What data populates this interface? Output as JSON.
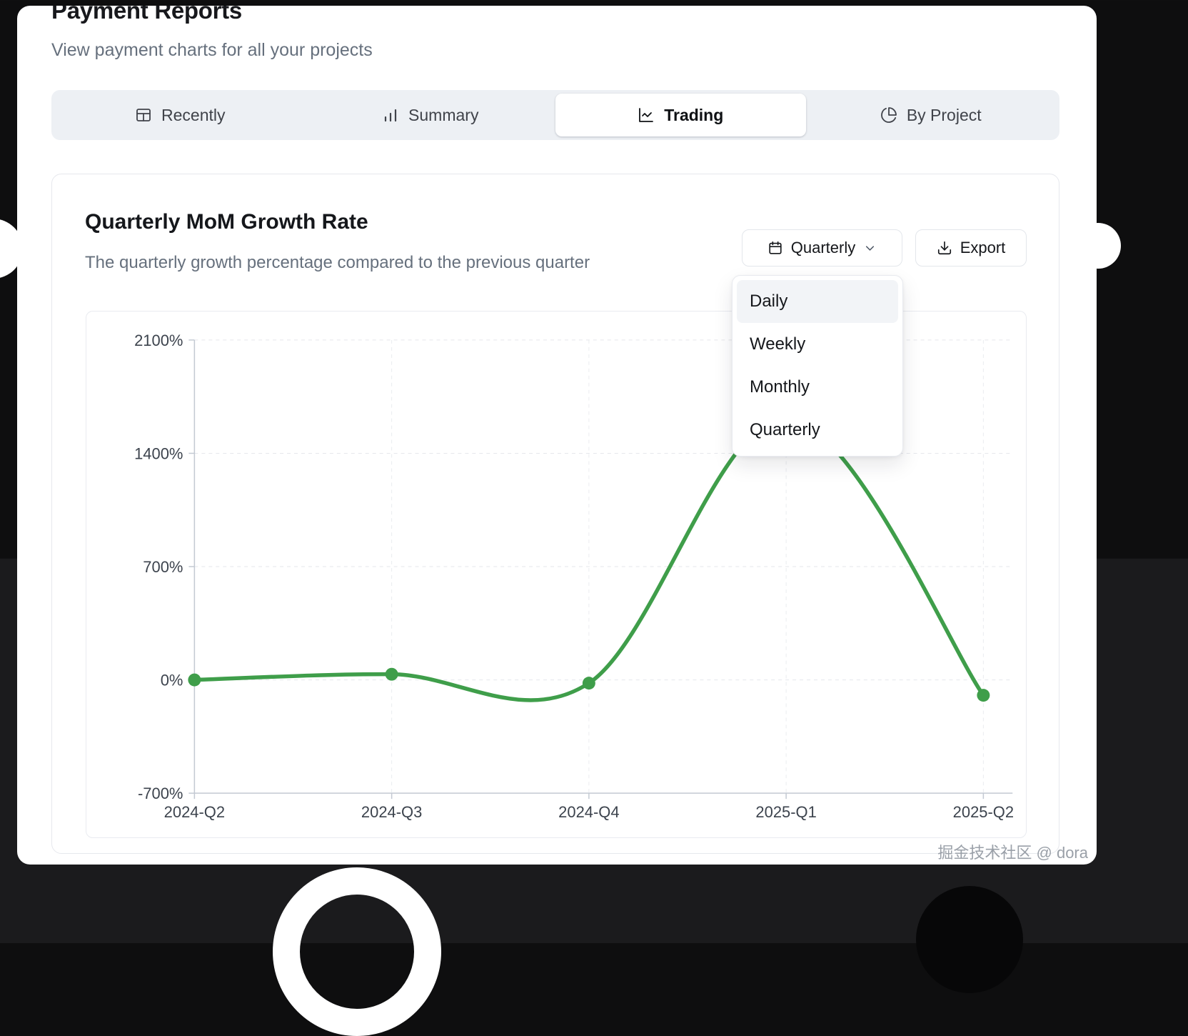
{
  "page": {
    "title": "Payment Reports",
    "subtitle": "View payment charts for all your projects"
  },
  "tabs": [
    {
      "label": "Recently",
      "icon": "table-icon",
      "active": false
    },
    {
      "label": "Summary",
      "icon": "bar-chart-icon",
      "active": false
    },
    {
      "label": "Trading",
      "icon": "line-chart-icon",
      "active": true
    },
    {
      "label": "By Project",
      "icon": "pie-chart-icon",
      "active": false
    }
  ],
  "card": {
    "title": "Quarterly MoM Growth Rate",
    "subtitle": "The quarterly growth percentage compared to the previous quarter",
    "period_button": "Quarterly",
    "period_button_icon": "calendar-icon",
    "period_button_chevron": "chevron-down-icon",
    "export_button": "Export",
    "export_button_icon": "download-icon"
  },
  "dropdown": {
    "items": [
      {
        "label": "Daily",
        "highlighted": true
      },
      {
        "label": "Weekly",
        "highlighted": false
      },
      {
        "label": "Monthly",
        "highlighted": false
      },
      {
        "label": "Quarterly",
        "highlighted": false
      }
    ]
  },
  "chart_data": {
    "type": "line",
    "title": "Quarterly MoM Growth Rate",
    "x": [
      "2024-Q2",
      "2024-Q3",
      "2024-Q4",
      "2025-Q1",
      "2025-Q2"
    ],
    "values": [
      0,
      35,
      -20,
      1620,
      -95
    ],
    "unit": "%",
    "y_ticks": [
      "2100%",
      "1400%",
      "700%",
      "0%",
      "-700%"
    ],
    "y_tick_values": [
      2100,
      1400,
      700,
      0,
      -700
    ],
    "ylim": [
      -700,
      2100
    ],
    "line_color": "#3f9e4a",
    "grid": true,
    "legend": false
  },
  "colors": {
    "accent_green": "#3f9e4a",
    "tabbar_bg": "#edf0f4",
    "muted_text": "#66707d"
  },
  "watermark": "掘金技术社区 @ dora"
}
